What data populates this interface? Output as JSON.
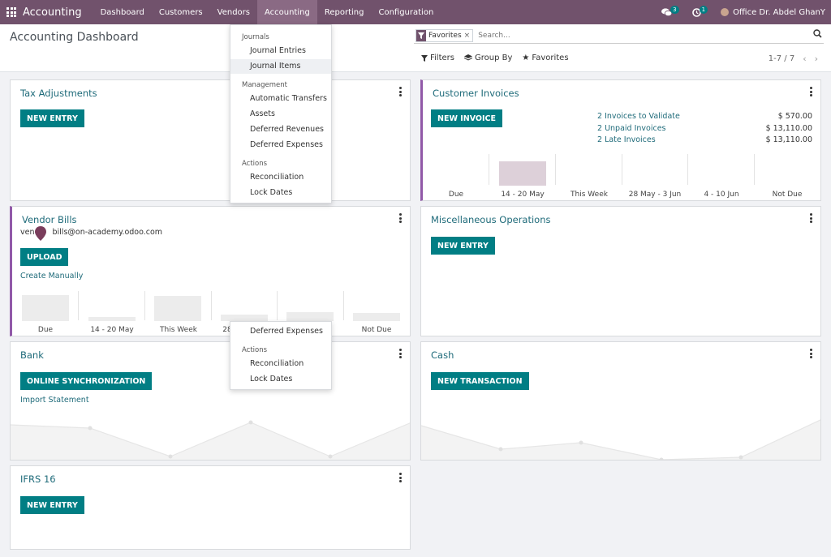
{
  "navbar": {
    "brand": "Accounting",
    "menu": [
      "Dashboard",
      "Customers",
      "Vendors",
      "Accounting",
      "Reporting",
      "Configuration"
    ],
    "active": "Accounting",
    "messages_count": "3",
    "activities_count": "1",
    "user": "Office Dr. Abdel GhanY",
    "color": "#71526c"
  },
  "control_panel": {
    "title": "Accounting Dashboard",
    "facet": "Favorites",
    "search_placeholder": "Search...",
    "filters_label": "Filters",
    "groupby_label": "Group By",
    "favorites_label": "Favorites",
    "pager": "1-7 / 7"
  },
  "accounting_menu": {
    "sections": [
      {
        "header": "Journals",
        "items": [
          "Journal Entries",
          "Journal Items"
        ]
      },
      {
        "header": "Management",
        "items": [
          "Automatic Transfers",
          "Assets",
          "Deferred Revenues",
          "Deferred Expenses"
        ]
      },
      {
        "header": "Actions",
        "items": [
          "Reconciliation",
          "Lock Dates"
        ]
      }
    ],
    "hovered": "Journal Items"
  },
  "ghost_menu": {
    "items": [
      "Deferred Expenses"
    ],
    "header": "Actions",
    "actions": [
      "Reconciliation",
      "Lock Dates"
    ]
  },
  "cards": {
    "tax": {
      "title": "Tax Adjustments",
      "button": "NEW ENTRY"
    },
    "customer_invoices": {
      "title": "Customer Invoices",
      "button": "NEW INVOICE",
      "stats": [
        {
          "label": "2 Invoices to Validate",
          "value": "$ 570.00"
        },
        {
          "label": "2 Unpaid Invoices",
          "value": "$ 13,110.00"
        },
        {
          "label": "2 Late Invoices",
          "value": "$ 13,110.00"
        }
      ],
      "bars": [
        "Due",
        "14 - 20 May",
        "This Week",
        "28 May - 3 Jun",
        "4 - 10 Jun",
        "Not Due"
      ]
    },
    "vendor_bills": {
      "title": "Vendor Bills",
      "email_prefix": "ven",
      "email_suffix": "bills@on-academy.odoo.com",
      "button": "UPLOAD",
      "link": "Create Manually",
      "bars": [
        "Due",
        "14 - 20 May",
        "This Week",
        "28",
        "",
        "Not Due"
      ]
    },
    "misc": {
      "title": "Miscellaneous Operations",
      "button": "NEW ENTRY"
    },
    "bank": {
      "title": "Bank",
      "button": "ONLINE SYNCHRONIZATION",
      "link": "Import Statement"
    },
    "cash": {
      "title": "Cash",
      "button": "NEW TRANSACTION"
    },
    "ifrs": {
      "title": "IFRS 16",
      "button": "NEW ENTRY"
    }
  },
  "colors": {
    "primary": "#017e84",
    "link": "#1f6b7a",
    "accent": "#9159a8"
  }
}
